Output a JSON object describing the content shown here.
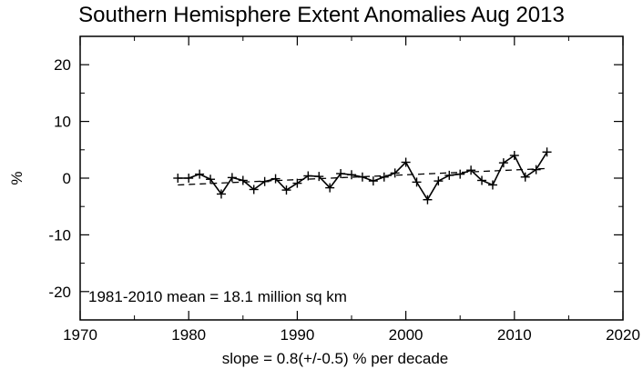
{
  "chart_data": {
    "type": "line",
    "title": "Southern Hemisphere Extent Anomalies Aug 2013",
    "ylabel": "%",
    "xlabel": "",
    "xlim": [
      1970,
      2020
    ],
    "ylim": [
      -25,
      25
    ],
    "x_ticks": [
      1970,
      1980,
      1990,
      2000,
      2010,
      2020
    ],
    "y_ticks": [
      -20,
      -10,
      0,
      10,
      20
    ],
    "grid": false,
    "annotations": {
      "mean": "1981-2010 mean =  18.1 million sq km",
      "slope": "slope =   0.8(+/-0.5) % per decade"
    },
    "series": [
      {
        "style": "solid-with-plus-markers",
        "x": [
          1979,
          1980,
          1981,
          1982,
          1983,
          1984,
          1985,
          1986,
          1987,
          1988,
          1989,
          1990,
          1991,
          1992,
          1993,
          1994,
          1995,
          1996,
          1997,
          1998,
          1999,
          2000,
          2001,
          2002,
          2003,
          2004,
          2005,
          2006,
          2007,
          2008,
          2009,
          2010,
          2011,
          2012,
          2013
        ],
        "y": [
          0.0,
          0.0,
          0.7,
          -0.2,
          -2.8,
          0.1,
          -0.4,
          -2.0,
          -0.6,
          -0.1,
          -2.1,
          -0.9,
          0.4,
          0.3,
          -1.7,
          0.8,
          0.6,
          0.2,
          -0.5,
          0.2,
          0.9,
          2.8,
          -0.7,
          -3.8,
          -0.5,
          0.5,
          0.7,
          1.4,
          -0.4,
          -1.2,
          2.7,
          4.0,
          0.2,
          1.5,
          4.6
        ]
      },
      {
        "style": "dashed-trend",
        "x": [
          1979,
          2013
        ],
        "y": [
          -1.2,
          1.7
        ]
      }
    ]
  }
}
